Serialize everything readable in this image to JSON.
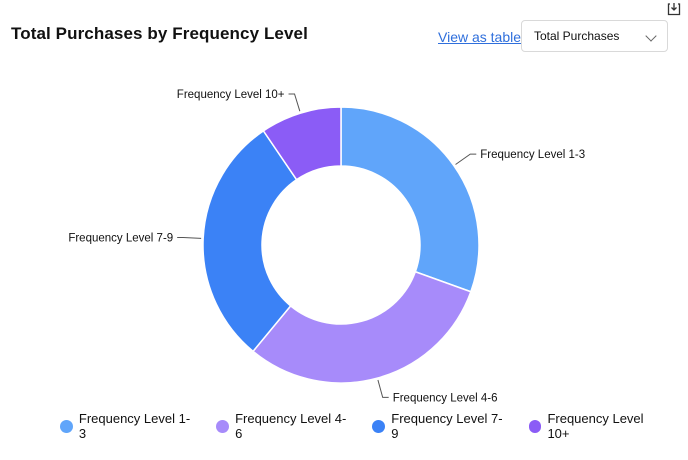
{
  "header": {
    "title": "Total Purchases by Frequency Level",
    "view_table_label": "View as table",
    "metric_select_value": "Total Purchases",
    "download_icon": "download-icon"
  },
  "chart_data": {
    "type": "pie",
    "title": "Total Purchases by Frequency Level",
    "donut": true,
    "categories": [
      "Frequency Level 1-3",
      "Frequency Level 4-6",
      "Frequency Level 7-9",
      "Frequency Level 10+"
    ],
    "values": [
      30.5,
      30.5,
      29.5,
      9.5
    ],
    "colors": [
      "#60a5fa",
      "#a78bfa",
      "#3b82f6",
      "#8b5cf6"
    ],
    "legend_position": "bottom"
  }
}
